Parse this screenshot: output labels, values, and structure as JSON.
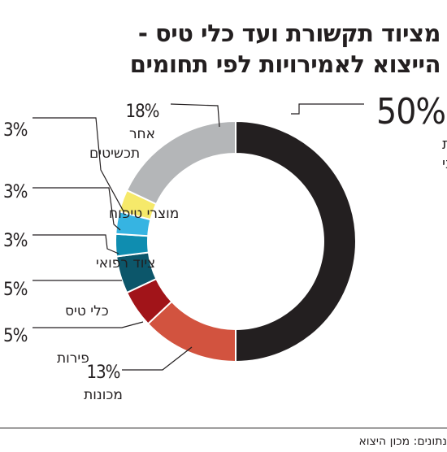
{
  "title": {
    "line1": "מציוד תקשורת ועד כלי טיס -",
    "line2": "הייצוא לאמירויות לפי תחומים"
  },
  "source": "נתונים: מכון היצוא",
  "chart_data": {
    "type": "pie",
    "donut": true,
    "slices": [
      {
        "label": [
          "ציוד תקשורת",
          "וציוד אלקטרוני"
        ],
        "pct_text": "50%",
        "value": 50,
        "color": "#231f20"
      },
      {
        "label": [
          "מכונות"
        ],
        "pct_text": "13%",
        "value": 13,
        "color": "#d2533f"
      },
      {
        "label": [
          "פירות"
        ],
        "pct_text": "5%",
        "value": 5,
        "color": "#a11419"
      },
      {
        "label": [
          "כלי טיס"
        ],
        "pct_text": "5%",
        "value": 5,
        "color": "#0c566a"
      },
      {
        "label": [
          "ציוד רפואי"
        ],
        "pct_text": "3%",
        "value": 3,
        "color": "#0f8db0"
      },
      {
        "label": [
          "מוצרי טיפוח"
        ],
        "pct_text": "3%",
        "value": 3,
        "color": "#36b4e2"
      },
      {
        "label": [
          "תכשיטים"
        ],
        "pct_text": "3%",
        "value": 3,
        "color": "#f6e96a"
      },
      {
        "label": [
          "אחר"
        ],
        "pct_text": "18%",
        "value": 18,
        "color": "#b4b6b8"
      }
    ]
  }
}
